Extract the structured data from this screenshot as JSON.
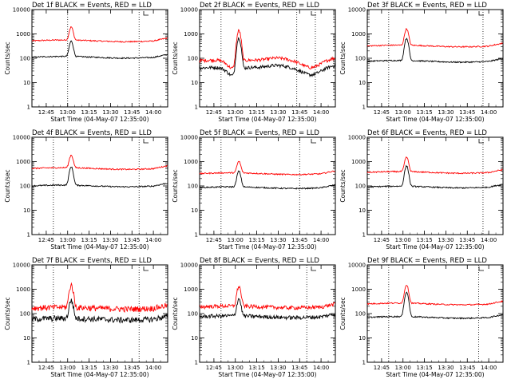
{
  "chart_data": {
    "type": "line",
    "layout": {
      "rows": 3,
      "cols": 3
    },
    "x_tick_labels": [
      "12:45",
      "13:00",
      "13:15",
      "13:30",
      "13:45",
      "14:00"
    ],
    "x_tick_minutes": [
      765,
      780,
      795,
      810,
      825,
      840
    ],
    "x_range_minutes": [
      755,
      850
    ],
    "y_scale": "log",
    "y_range": [
      1,
      10000
    ],
    "y_tick_labels": [
      "1",
      "10",
      "100",
      "1000",
      "10000"
    ],
    "y_tick_values": [
      1,
      10,
      100,
      1000,
      10000
    ],
    "line_colors": {
      "events": "#000000",
      "lld": "#ff0000"
    },
    "panels": [
      {
        "title": "Det 1f BLACK = Events, RED = LLD",
        "ylabel": "Counts/sec",
        "xlabel": "Start Time (04-May-07 12:35:00)",
        "x_tick_labels": [
          "12:45",
          "13:00",
          "13:15",
          "13:30",
          "13:45",
          "14:00"
        ],
        "lld_base": 520,
        "lld_peak": 1900,
        "events_base": 110,
        "events_peak": 500,
        "noise": 0.02,
        "shape": "flat",
        "vlines": [
          780,
          830
        ]
      },
      {
        "title": "Det 2f BLACK = Events, RED = LLD",
        "ylabel": "Counts/sec",
        "xlabel": "Start Time (04-May-07 12:35:00)",
        "x_tick_labels": [
          "12:45",
          "13:00",
          "13:15",
          "13:30",
          "13:45",
          "14:00"
        ],
        "lld_base": 80,
        "lld_peak": 1400,
        "events_base": 40,
        "events_peak": 700,
        "noise": 0.05,
        "shape": "dip",
        "vlines": [
          770,
          823,
          836
        ]
      },
      {
        "title": "Det 3f BLACK = Events, RED = LLD",
        "ylabel": "Counts/sec",
        "xlabel": "Start Time (04-May-07 12:35:00)",
        "x_tick_labels": [
          "12:45",
          "13:00",
          "13:15",
          "13:30",
          "13:45",
          "14:00"
        ],
        "lld_base": 320,
        "lld_peak": 1600,
        "events_base": 75,
        "events_peak": 650,
        "noise": 0.02,
        "shape": "flat",
        "vlines": [
          770,
          836
        ]
      },
      {
        "title": "Det 4f BLACK = Events, RED = LLD",
        "ylabel": "Counts/sec",
        "xlabel": "Start Time (04-May-07 12:35:00)",
        "x_tick_labels": [
          "12:45",
          "13:00",
          "13:15",
          "13:30",
          "13:45",
          "14:00"
        ],
        "lld_base": 520,
        "lld_peak": 1800,
        "events_base": 100,
        "events_peak": 600,
        "noise": 0.02,
        "shape": "flat",
        "vlines": [
          770,
          830
        ]
      },
      {
        "title": "Det 5f BLACK = Events, RED = LLD",
        "ylabel": "Counts/sec",
        "xlabel": "Start Time (04-May-07 12:35:00)",
        "x_tick_labels": [
          "12:45",
          "13:00",
          "13:15",
          "13:30",
          "13:45",
          "14:00"
        ],
        "lld_base": 320,
        "lld_peak": 1000,
        "events_base": 85,
        "events_peak": 400,
        "noise": 0.02,
        "shape": "flat",
        "vlines": [
          770,
          825
        ]
      },
      {
        "title": "Det 6f BLACK = Events, RED = LLD",
        "ylabel": "Counts/sec",
        "xlabel": "Start Time (04-May-07 12:35:00)",
        "x_tick_labels": [
          "12:45",
          "13:00",
          "13:15",
          "13:30",
          "13:45",
          "14:00"
        ],
        "lld_base": 360,
        "lld_peak": 1500,
        "events_base": 90,
        "events_peak": 650,
        "noise": 0.02,
        "shape": "flat",
        "vlines": [
          770,
          836
        ]
      },
      {
        "title": "Det 7f BLACK = Events, RED = LLD",
        "ylabel": "Counts/sec",
        "xlabel": "Start Time (04-May-07 12:35:00)",
        "x_tick_labels": [
          "12:45",
          "13:00",
          "13:15",
          "13:30",
          "13:45",
          "14:00"
        ],
        "lld_base": 170,
        "lld_peak": 1500,
        "events_base": 60,
        "events_peak": 350,
        "noise": 0.09,
        "shape": "flat",
        "vlines": [
          770,
          830
        ]
      },
      {
        "title": "Det 8f BLACK = Events, RED = LLD",
        "ylabel": "Counts/sec",
        "xlabel": "Start Time (04-May-07 12:35:00)",
        "x_tick_labels": [
          "12:45",
          "13:00",
          "13:15",
          "13:30",
          "13:45",
          "14:00"
        ],
        "lld_base": 190,
        "lld_peak": 1300,
        "events_base": 75,
        "events_peak": 400,
        "noise": 0.06,
        "shape": "flat",
        "vlines": [
          770,
          830
        ]
      },
      {
        "title": "Det 9f BLACK = Events, RED = LLD",
        "ylabel": "Counts/sec",
        "xlabel": "Start Time (04-May-07 12:35:00)",
        "x_tick_labels": [
          "12:45",
          "13:00",
          "13:15",
          "13:30",
          "13:45",
          "14:00"
        ],
        "lld_base": 250,
        "lld_peak": 1500,
        "events_base": 70,
        "events_peak": 750,
        "noise": 0.02,
        "shape": "flat",
        "vlines": [
          770,
          833
        ]
      }
    ]
  }
}
